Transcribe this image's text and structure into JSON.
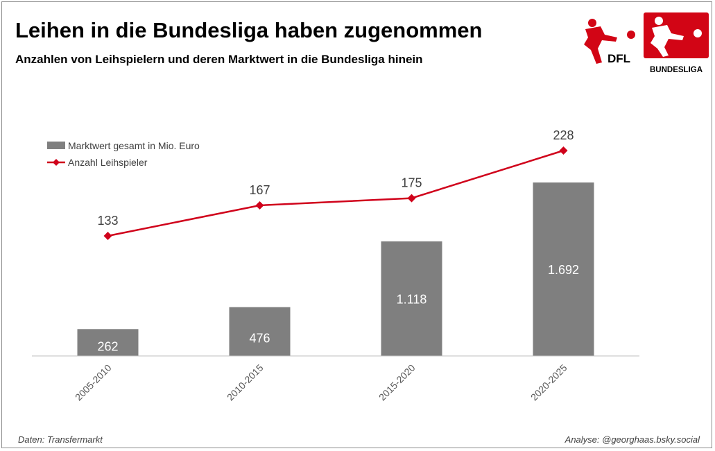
{
  "title": "Leihen in die Bundesliga haben zugenommen",
  "subtitle": "Anzahlen von Leihspielern und deren Marktwert in die Bundesliga hinein",
  "footer": {
    "source": "Daten: Transfermarkt",
    "credit": "Analyse: @georghaas.bsky.social"
  },
  "logos": {
    "dfl_text": "DFL",
    "bundesliga_text": "BUNDESLIGA"
  },
  "colors": {
    "bar": "#7f7f7f",
    "line": "#d0021b",
    "logo_red": "#d20515"
  },
  "chart_data": {
    "type": "bar",
    "categories": [
      "2005-2010",
      "2010-2015",
      "2015-2020",
      "2020-2025"
    ],
    "series": [
      {
        "name": "Marktwert gesamt in Mio. Euro",
        "type": "bar",
        "values": [
          262,
          476,
          1118,
          1692
        ],
        "labels": [
          "262",
          "476",
          "1.118",
          "1.692"
        ]
      },
      {
        "name": "Anzahl Leihspieler",
        "type": "line",
        "values": [
          133,
          167,
          175,
          228
        ],
        "labels": [
          "133",
          "167",
          "175",
          "228"
        ]
      }
    ],
    "legend": "top-left",
    "grid": false
  }
}
